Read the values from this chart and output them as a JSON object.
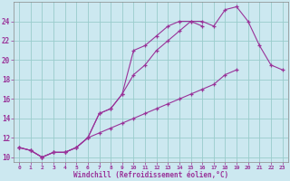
{
  "xlabel": "Windchill (Refroidissement éolien,°C)",
  "background_color": "#cce8f0",
  "grid_color": "#99cccc",
  "line_color": "#993399",
  "xlim": [
    -0.5,
    23.5
  ],
  "ylim": [
    9.5,
    26.0
  ],
  "yticks": [
    10,
    12,
    14,
    16,
    18,
    20,
    22,
    24
  ],
  "xticks": [
    0,
    1,
    2,
    3,
    4,
    5,
    6,
    7,
    8,
    9,
    10,
    11,
    12,
    13,
    14,
    15,
    16,
    17,
    18,
    19,
    20,
    21,
    22,
    23
  ],
  "series_x": [
    [
      0,
      1,
      2,
      3,
      4,
      5,
      6,
      7,
      8,
      9,
      10,
      11,
      12,
      13,
      14,
      15,
      16,
      17,
      18,
      19,
      20,
      21,
      22,
      23
    ],
    [
      0,
      1,
      2,
      3,
      4,
      5,
      6,
      7,
      8,
      9,
      10,
      11,
      12,
      13,
      14,
      15,
      16
    ],
    [
      0,
      1,
      2,
      3,
      4,
      5,
      6,
      7,
      8,
      9,
      10,
      11,
      12,
      13,
      14,
      15,
      16,
      17,
      18,
      19
    ]
  ],
  "series_y": [
    [
      11.0,
      10.7,
      10.0,
      10.5,
      10.5,
      11.0,
      12.0,
      14.5,
      15.0,
      16.5,
      18.5,
      19.5,
      21.0,
      22.0,
      23.0,
      24.0,
      24.0,
      23.5,
      25.2,
      25.5,
      24.0,
      21.5,
      19.5,
      19.0
    ],
    [
      11.0,
      10.7,
      10.0,
      10.5,
      10.5,
      11.0,
      12.0,
      14.5,
      15.0,
      16.5,
      21.0,
      21.5,
      22.5,
      23.5,
      24.0,
      24.0,
      23.5
    ],
    [
      11.0,
      10.7,
      10.0,
      10.5,
      10.5,
      11.0,
      12.0,
      12.5,
      13.0,
      13.5,
      14.0,
      14.5,
      15.0,
      15.5,
      16.0,
      16.5,
      17.0,
      17.5,
      18.5,
      19.0
    ]
  ]
}
